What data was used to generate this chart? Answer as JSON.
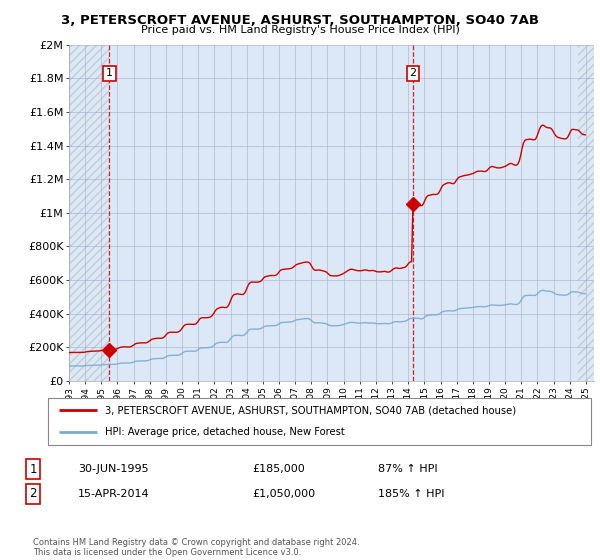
{
  "title_line1": "3, PETERSCROFT AVENUE, ASHURST, SOUTHAMPTON, SO40 7AB",
  "title_line2": "Price paid vs. HM Land Registry's House Price Index (HPI)",
  "ylim": [
    0,
    2000000
  ],
  "yticks": [
    0,
    200000,
    400000,
    600000,
    800000,
    1000000,
    1200000,
    1400000,
    1600000,
    1800000,
    2000000
  ],
  "ytick_labels": [
    "£0",
    "£200K",
    "£400K",
    "£600K",
    "£800K",
    "£1M",
    "£1.2M",
    "£1.4M",
    "£1.6M",
    "£1.8M",
    "£2M"
  ],
  "xlim_start": 1993.0,
  "xlim_end": 2025.5,
  "xtick_years": [
    1993,
    1994,
    1995,
    1996,
    1997,
    1998,
    1999,
    2000,
    2001,
    2002,
    2003,
    2004,
    2005,
    2006,
    2007,
    2008,
    2009,
    2010,
    2011,
    2012,
    2013,
    2014,
    2015,
    2016,
    2017,
    2018,
    2019,
    2020,
    2021,
    2022,
    2023,
    2024,
    2025
  ],
  "transaction1_x": 1995.5,
  "transaction1_y": 185000,
  "transaction1_date": "30-JUN-1995",
  "transaction1_price": "£185,000",
  "transaction1_hpi": "87% ↑ HPI",
  "transaction2_x": 2014.29,
  "transaction2_y": 1050000,
  "transaction2_date": "15-APR-2014",
  "transaction2_price": "£1,050,000",
  "transaction2_hpi": "185% ↑ HPI",
  "sale_color": "#cc0000",
  "hpi_color": "#7aaad0",
  "legend_label1": "3, PETERSCROFT AVENUE, ASHURST, SOUTHAMPTON, SO40 7AB (detached house)",
  "legend_label2": "HPI: Average price, detached house, New Forest",
  "footer": "Contains HM Land Registry data © Crown copyright and database right 2024.\nThis data is licensed under the Open Government Licence v3.0.",
  "plot_bg": "#dce8f5",
  "hatch_color": "#c0ccd8"
}
